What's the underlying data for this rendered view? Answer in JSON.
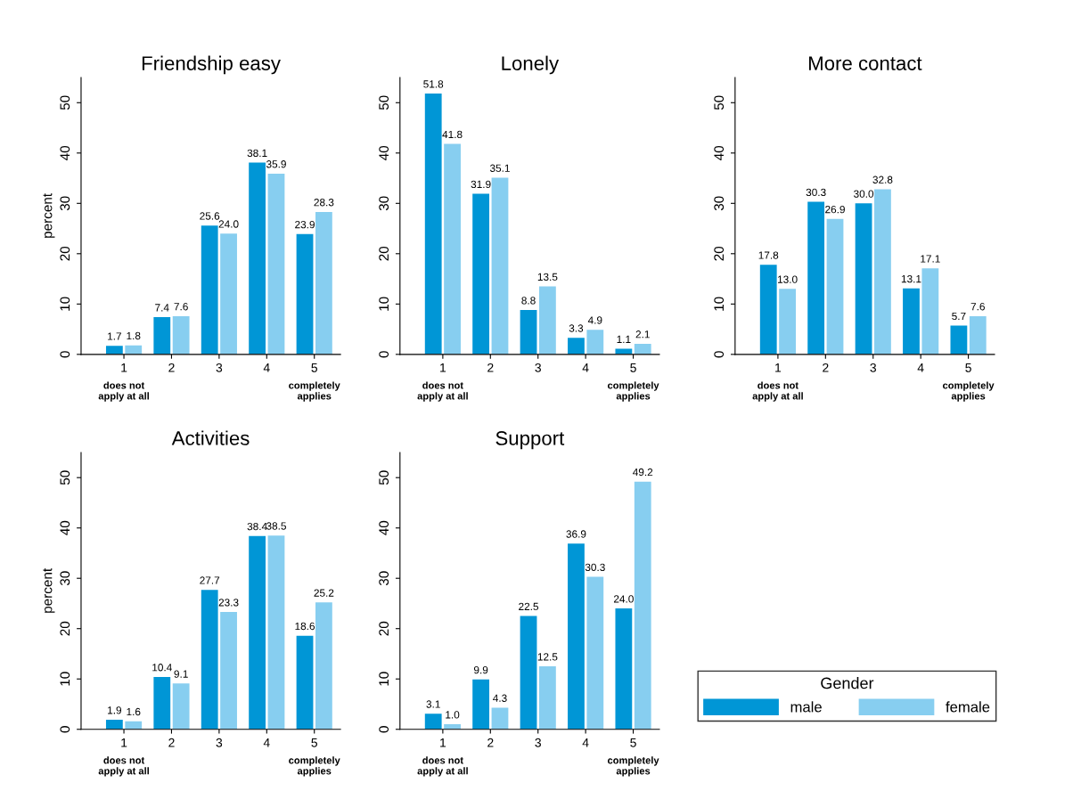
{
  "chart_data": [
    {
      "type": "bar",
      "title": "Friendship easy",
      "ylabel": "percent",
      "categories": [
        "1",
        "2",
        "3",
        "4",
        "5"
      ],
      "annotations": [
        "does not\napply at all",
        "completely\napplies"
      ],
      "ylim": [
        0,
        55
      ],
      "yticks": [
        0,
        10,
        20,
        30,
        40,
        50
      ],
      "series": [
        {
          "color": "#0096d6",
          "values": [
            1.7,
            7.4,
            25.6,
            38.1,
            23.9
          ],
          "value_labels": [
            "1.7",
            "7.4",
            "25.6",
            "38.1",
            "23.9"
          ]
        },
        {
          "color": "#87cef0",
          "values": [
            1.8,
            7.6,
            24.0,
            35.9,
            28.3
          ],
          "value_labels": [
            "1.8",
            "7.6",
            "24.0",
            "35.9",
            "28.3"
          ]
        }
      ]
    },
    {
      "type": "bar",
      "title": "Lonely",
      "categories": [
        "1",
        "2",
        "3",
        "4",
        "5"
      ],
      "annotations": [
        "does not\napply at all",
        "completely\napplies"
      ],
      "ylim": [
        0,
        55
      ],
      "yticks": [
        0,
        10,
        20,
        30,
        40,
        50
      ],
      "series": [
        {
          "color": "#0096d6",
          "values": [
            51.8,
            31.9,
            8.8,
            3.3,
            1.1
          ],
          "value_labels": [
            "51.8",
            "31.9",
            "8.8",
            "3.3",
            "1.1"
          ]
        },
        {
          "color": "#87cef0",
          "values": [
            41.8,
            35.1,
            13.5,
            4.9,
            2.1
          ],
          "value_labels": [
            "41.8",
            "35.1",
            "13.5",
            "4.9",
            "2.1"
          ]
        }
      ]
    },
    {
      "type": "bar",
      "title": "More contact",
      "categories": [
        "1",
        "2",
        "3",
        "4",
        "5"
      ],
      "annotations": [
        "does not\napply at all",
        "completely\napplies"
      ],
      "ylim": [
        0,
        55
      ],
      "yticks": [
        0,
        10,
        20,
        30,
        40,
        50
      ],
      "series": [
        {
          "color": "#0096d6",
          "values": [
            17.8,
            30.3,
            30.0,
            13.1,
            5.7
          ],
          "value_labels": [
            "17.8",
            "30.3",
            "30.0",
            "13.1",
            "5.7"
          ]
        },
        {
          "color": "#87cef0",
          "values": [
            13.0,
            26.9,
            32.8,
            17.1,
            7.6
          ],
          "value_labels": [
            "13.0",
            "26.9",
            "32.8",
            "17.1",
            "7.6"
          ]
        }
      ]
    },
    {
      "type": "bar",
      "title": "Activities",
      "ylabel": "percent",
      "categories": [
        "1",
        "2",
        "3",
        "4",
        "5"
      ],
      "annotations": [
        "does not\napply at all",
        "completely\napplies"
      ],
      "ylim": [
        0,
        55
      ],
      "yticks": [
        0,
        10,
        20,
        30,
        40,
        50
      ],
      "series": [
        {
          "color": "#0096d6",
          "values": [
            1.9,
            10.4,
            27.7,
            38.4,
            18.6
          ],
          "value_labels": [
            "1.9",
            "10.4",
            "27.7",
            "38.4",
            "18.6"
          ]
        },
        {
          "color": "#87cef0",
          "values": [
            1.6,
            9.1,
            23.3,
            38.5,
            25.2
          ],
          "value_labels": [
            "1.6",
            "9.1",
            "23.3",
            "38.5",
            "25.2"
          ]
        }
      ]
    },
    {
      "type": "bar",
      "title": "Support",
      "categories": [
        "1",
        "2",
        "3",
        "4",
        "5"
      ],
      "annotations": [
        "does not\napply at all",
        "completely\napplies"
      ],
      "ylim": [
        0,
        55
      ],
      "yticks": [
        0,
        10,
        20,
        30,
        40,
        50
      ],
      "legend": "right",
      "legend_title": "Gender",
      "series": [
        {
          "name": "male",
          "color": "#0096d6",
          "values": [
            3.1,
            9.9,
            22.5,
            36.9,
            24.0
          ],
          "value_labels": [
            "3.1",
            "9.9",
            "22.5",
            "36.9",
            "24.0"
          ]
        },
        {
          "name": "female",
          "color": "#87cef0",
          "values": [
            1.0,
            4.3,
            12.5,
            30.3,
            49.2
          ],
          "value_labels": [
            "1.0",
            "4.3",
            "12.5",
            "30.3",
            "49.2"
          ]
        }
      ]
    }
  ]
}
